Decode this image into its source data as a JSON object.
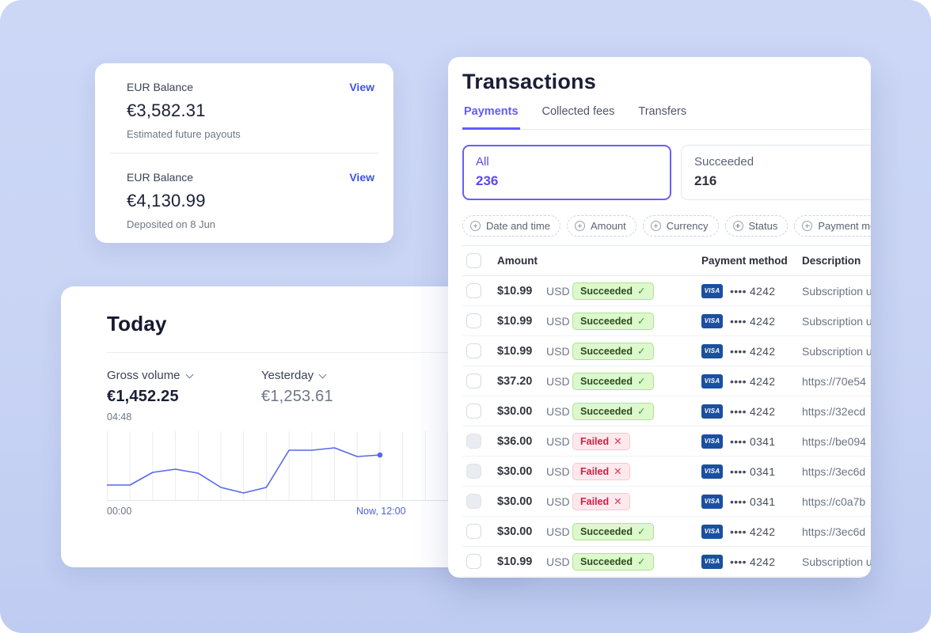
{
  "colors": {
    "background_top": "#ccd7f6",
    "accent_purple": "#635bff",
    "link_blue": "#3f53e6",
    "chart_line": "#5668e8",
    "success_bg": "#ddf8cd",
    "failed_text": "#d11d44",
    "visa_blue": "#1b4fa0"
  },
  "balance_card": {
    "items": [
      {
        "label": "EUR Balance",
        "amount": "€3,582.31",
        "note": "Estimated future payouts",
        "action": "View"
      },
      {
        "label": "EUR Balance",
        "amount": "€4,130.99",
        "note": "Deposited on 8 Jun",
        "action": "View"
      }
    ]
  },
  "today_card": {
    "title": "Today",
    "metrics": [
      {
        "label": "Gross volume",
        "value": "€1,452.25",
        "sub": "04:48"
      },
      {
        "label": "Yesterday",
        "value": "€1,253.61",
        "sub": ""
      }
    ],
    "x_start_label": "00:00",
    "x_now_label": "Now, 12:00"
  },
  "chart_data": {
    "type": "line",
    "title": "Gross volume today (sparkline, y-axis unlabeled)",
    "series": [
      {
        "name": "Gross volume",
        "values": [
          19,
          19,
          35,
          39,
          34,
          16,
          9,
          16,
          63,
          63,
          66,
          55,
          57
        ]
      }
    ],
    "x": [
      "00:00",
      "01:00",
      "02:00",
      "03:00",
      "04:00",
      "05:00",
      "06:00",
      "07:00",
      "08:00",
      "09:00",
      "10:00",
      "11:00",
      "12:00"
    ],
    "x_tick_labels": [
      "00:00",
      "Now, 12:00"
    ],
    "ylim": [
      0,
      88
    ],
    "y_values_are_relative_estimates": true,
    "grid": "vertical",
    "legend": "none",
    "line_color": "#5668e8",
    "endpoint_dot": true
  },
  "transactions": {
    "title": "Transactions",
    "tabs": [
      {
        "label": "Payments"
      },
      {
        "label": "Collected fees"
      },
      {
        "label": "Transfers"
      }
    ],
    "stats": [
      {
        "label": "All",
        "count": "236"
      },
      {
        "label": "Succeeded",
        "count": "216"
      }
    ],
    "filters": [
      {
        "label": "Date and time"
      },
      {
        "label": "Amount"
      },
      {
        "label": "Currency"
      },
      {
        "label": "Status"
      },
      {
        "label": "Payment method"
      }
    ],
    "table": {
      "headers": {
        "amount": "Amount",
        "payment_method": "Payment method",
        "description": "Description"
      },
      "visa_label": "VISA",
      "rows": [
        {
          "amount": "$10.99",
          "currency": "USD",
          "status": "Succeeded",
          "status_type": "success",
          "card": "•••• 4242",
          "description": "Subscription u"
        },
        {
          "amount": "$10.99",
          "currency": "USD",
          "status": "Succeeded",
          "status_type": "success",
          "card": "•••• 4242",
          "description": "Subscription u"
        },
        {
          "amount": "$10.99",
          "currency": "USD",
          "status": "Succeeded",
          "status_type": "success",
          "card": "•••• 4242",
          "description": "Subscription u"
        },
        {
          "amount": "$37.20",
          "currency": "USD",
          "status": "Succeeded",
          "status_type": "success",
          "card": "•••• 4242",
          "description": "https://70e54"
        },
        {
          "amount": "$30.00",
          "currency": "USD",
          "status": "Succeeded",
          "status_type": "success",
          "card": "•••• 4242",
          "description": "https://32ecd"
        },
        {
          "amount": "$36.00",
          "currency": "USD",
          "status": "Failed",
          "status_type": "failed",
          "card": "•••• 0341",
          "description": "https://be094"
        },
        {
          "amount": "$30.00",
          "currency": "USD",
          "status": "Failed",
          "status_type": "failed",
          "card": "•••• 0341",
          "description": "https://3ec6d"
        },
        {
          "amount": "$30.00",
          "currency": "USD",
          "status": "Failed",
          "status_type": "failed",
          "card": "•••• 0341",
          "description": "https://c0a7b"
        },
        {
          "amount": "$30.00",
          "currency": "USD",
          "status": "Succeeded",
          "status_type": "success",
          "card": "•••• 4242",
          "description": "https://3ec6d"
        },
        {
          "amount": "$10.99",
          "currency": "USD",
          "status": "Succeeded",
          "status_type": "success",
          "card": "•••• 4242",
          "description": "Subscription u"
        }
      ]
    }
  }
}
